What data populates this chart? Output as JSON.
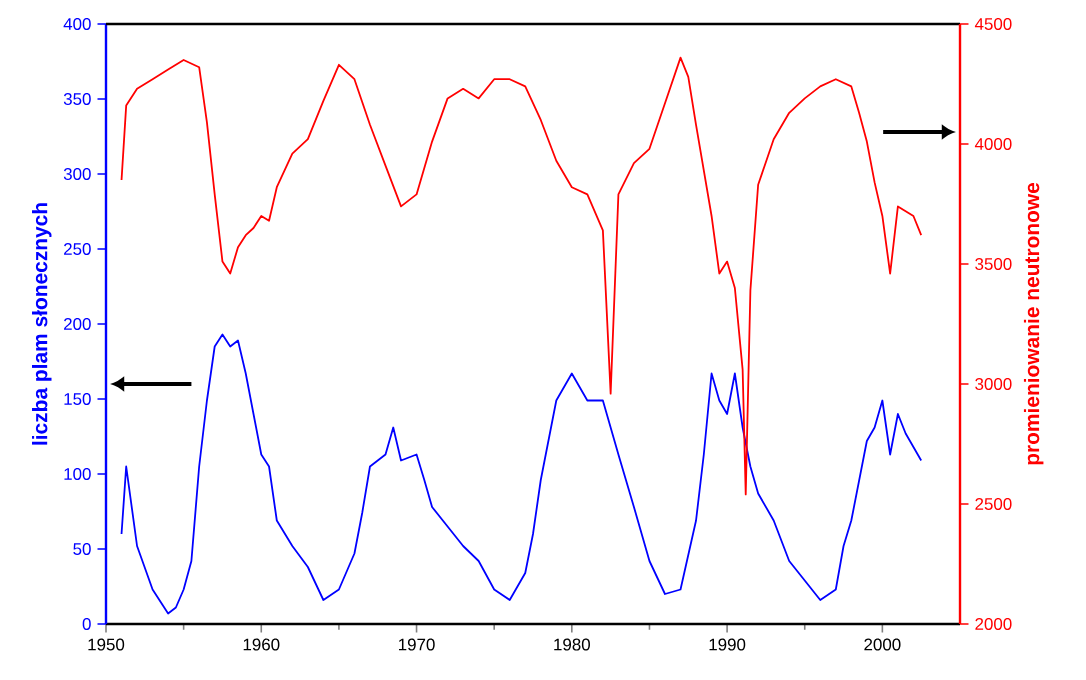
{
  "chart_data": {
    "type": "line",
    "ylabel": "liczba plam słonecznych",
    "y2label": "promieniowanie neutronowe",
    "xlim": [
      1950,
      2005
    ],
    "xticks": [
      1950,
      1960,
      1970,
      1980,
      1990,
      2000
    ],
    "ylim": [
      0,
      400
    ],
    "yticks": [
      0,
      50,
      100,
      150,
      200,
      250,
      300,
      350,
      400
    ],
    "y2lim": [
      2000,
      4500
    ],
    "y2ticks": [
      2000,
      2500,
      3000,
      3500,
      4000,
      4500
    ],
    "series": [
      {
        "color": "#0000ff",
        "x": [
          1951,
          1951.3,
          1952,
          1953,
          1954,
          1954.5,
          1955,
          1955.5,
          1956,
          1956.5,
          1957,
          1957.5,
          1958,
          1958.5,
          1959,
          1959.5,
          1960,
          1960.5,
          1961,
          1962,
          1963,
          1964,
          1965,
          1966,
          1966.5,
          1967,
          1968,
          1968.5,
          1969,
          1970,
          1970.5,
          1971,
          1972,
          1973,
          1974,
          1975,
          1976,
          1977,
          1977.5,
          1978,
          1979,
          1980,
          1981,
          1982,
          1983,
          1984,
          1985,
          1986,
          1987,
          1988,
          1988.5,
          1989,
          1989.5,
          1990,
          1990.5,
          1991,
          1991.5,
          1992,
          1993,
          1994,
          1995,
          1996,
          1997,
          1997.5,
          1998,
          1999,
          1999.5,
          2000,
          2000.5,
          2001,
          2001.5,
          2002,
          2002.5
        ],
        "values": [
          60,
          105,
          52,
          23,
          7,
          11,
          23,
          42,
          105,
          149,
          185,
          193,
          185,
          189,
          167,
          140,
          113,
          105,
          69,
          52,
          38,
          16,
          23,
          47,
          74,
          105,
          113,
          131,
          109,
          113,
          96,
          78,
          65,
          52,
          42,
          23,
          16,
          34,
          60,
          96,
          149,
          167,
          149,
          149,
          113,
          78,
          42,
          20,
          23,
          69,
          113,
          167,
          149,
          140,
          167,
          131,
          105,
          87,
          69,
          42,
          29,
          16,
          23,
          52,
          69,
          122,
          131,
          149,
          113,
          140,
          127,
          118,
          109
        ]
      },
      {
        "color": "#ff0000",
        "axis": "y2",
        "x": [
          1951,
          1951.3,
          1952,
          1953,
          1954,
          1955,
          1956,
          1956.5,
          1957,
          1957.5,
          1958,
          1958.5,
          1959,
          1959.5,
          1960,
          1960.5,
          1961,
          1962,
          1963,
          1964,
          1965,
          1966,
          1967,
          1968,
          1969,
          1970,
          1971,
          1972,
          1973,
          1974,
          1975,
          1976,
          1977,
          1978,
          1979,
          1980,
          1981,
          1982,
          1982.5,
          1983,
          1984,
          1985,
          1986,
          1987,
          1987.5,
          1988,
          1989,
          1989.5,
          1990,
          1990.5,
          1991,
          1991.2,
          1991.5,
          1992,
          1993,
          1994,
          1995,
          1996,
          1997,
          1998,
          1998.5,
          1999,
          1999.5,
          2000,
          2000.5,
          2001,
          2001.5,
          2002,
          2002.5
        ],
        "values": [
          3850,
          4160,
          4230,
          4270,
          4310,
          4350,
          4320,
          4090,
          3790,
          3510,
          3460,
          3570,
          3620,
          3650,
          3700,
          3680,
          3820,
          3960,
          4020,
          4180,
          4330,
          4270,
          4080,
          3910,
          3740,
          3790,
          4010,
          4190,
          4230,
          4190,
          4270,
          4270,
          4240,
          4100,
          3930,
          3820,
          3790,
          3640,
          2960,
          3790,
          3920,
          3980,
          4170,
          4360,
          4280,
          4080,
          3700,
          3460,
          3510,
          3400,
          3060,
          2540,
          3390,
          3830,
          4020,
          4130,
          4190,
          4240,
          4270,
          4240,
          4130,
          4010,
          3840,
          3700,
          3460,
          3740,
          3720,
          3700,
          3620
        ]
      }
    ]
  }
}
